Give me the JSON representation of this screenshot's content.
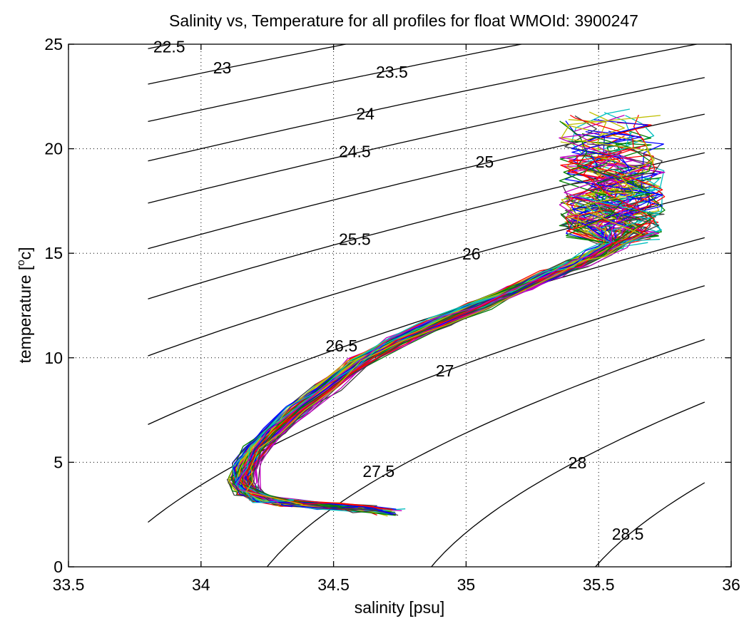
{
  "chart_data": {
    "type": "line",
    "title": "Salinity vs, Temperature for all profiles for float WMOId: 3900247",
    "xlabel": "salinity [psu]",
    "ylabel_main": "temperature [",
    "ylabel_sup": "o",
    "ylabel_tail": "c]",
    "xlim": [
      33.5,
      36
    ],
    "ylim": [
      0,
      25
    ],
    "xticks": [
      {
        "v": 33.5,
        "label": "33.5"
      },
      {
        "v": 34,
        "label": "34"
      },
      {
        "v": 34.5,
        "label": "34.5"
      },
      {
        "v": 35,
        "label": "35"
      },
      {
        "v": 35.5,
        "label": "35.5"
      },
      {
        "v": 36,
        "label": "36"
      }
    ],
    "yticks": [
      {
        "v": 0,
        "label": "0"
      },
      {
        "v": 5,
        "label": "5"
      },
      {
        "v": 10,
        "label": "10"
      },
      {
        "v": 15,
        "label": "15"
      },
      {
        "v": 20,
        "label": "20"
      },
      {
        "v": 25,
        "label": "25"
      }
    ],
    "grid": true,
    "density_contours": {
      "s_range": [
        33.8,
        35.9
      ],
      "levels": [
        {
          "sigma": 22.5,
          "label": "22.5",
          "label_at": [
            33.88,
            24.6
          ]
        },
        {
          "sigma": 23.0,
          "label": "23",
          "label_at": [
            34.08,
            23.6
          ]
        },
        {
          "sigma": 23.5,
          "label": "23.5",
          "label_at": [
            34.72,
            23.4
          ]
        },
        {
          "sigma": 24.0,
          "label": "24",
          "label_at": [
            34.62,
            21.4
          ]
        },
        {
          "sigma": 24.5,
          "label": "24.5",
          "label_at": [
            34.58,
            19.6
          ]
        },
        {
          "sigma": 25.0,
          "label": "25",
          "label_at": [
            35.07,
            19.1
          ]
        },
        {
          "sigma": 25.5,
          "label": "25.5",
          "label_at": [
            34.58,
            15.4
          ]
        },
        {
          "sigma": 26.0,
          "label": "26",
          "label_at": [
            35.02,
            14.7
          ]
        },
        {
          "sigma": 26.5,
          "label": "26.5",
          "label_at": [
            34.53,
            10.3
          ]
        },
        {
          "sigma": 27.0,
          "label": "27",
          "label_at": [
            34.92,
            9.1
          ]
        },
        {
          "sigma": 27.5,
          "label": "27.5",
          "label_at": [
            34.67,
            4.3
          ]
        },
        {
          "sigma": 28.0,
          "label": "28",
          "label_at": [
            35.42,
            4.7
          ]
        },
        {
          "sigma": 28.5,
          "label": "28.5",
          "label_at": [
            35.61,
            1.3
          ]
        }
      ]
    },
    "profile_colors": [
      "#0000ff",
      "#008000",
      "#ff0000",
      "#00bfbf",
      "#bf00bf",
      "#bfbf00",
      "#404040"
    ],
    "profile_count": 90,
    "profile_mean_curve": {
      "s": [
        34.72,
        34.62,
        34.5,
        34.35,
        34.24,
        34.18,
        34.16,
        34.17,
        34.21,
        34.28,
        34.37,
        34.48,
        34.6,
        34.74,
        34.9,
        35.05,
        35.2,
        35.32,
        35.42,
        35.5,
        35.56
      ],
      "t": [
        2.6,
        2.75,
        2.9,
        3.05,
        3.25,
        3.6,
        4.1,
        4.8,
        5.6,
        6.5,
        7.5,
        8.6,
        9.8,
        10.8,
        11.7,
        12.5,
        13.3,
        14.0,
        14.5,
        15.0,
        15.4
      ]
    },
    "warm_end_range": {
      "s": [
        35.3,
        35.75
      ],
      "t": [
        14.5,
        22.0
      ]
    }
  }
}
